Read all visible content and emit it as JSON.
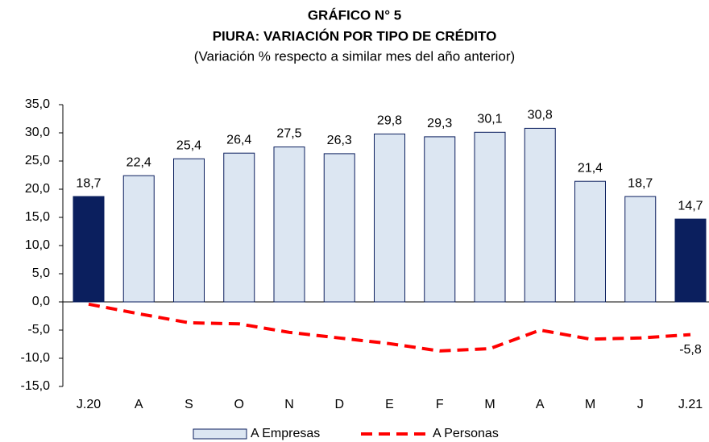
{
  "chart_data": {
    "type": "bar",
    "title": "GRÁFICO N° 5",
    "subtitle": "PIURA: VARIACIÓN POR TIPO DE CRÉDITO",
    "note": "(Variación % respecto a similar mes del año anterior)",
    "categories": [
      "J.20",
      "A",
      "S",
      "O",
      "N",
      "D",
      "E",
      "F",
      "M",
      "A",
      "M",
      "J",
      "J.21"
    ],
    "series": [
      {
        "name": "A Empresas",
        "type": "bar",
        "color": "#dce6f2",
        "colors": [
          "#0b1f5e",
          "#dce6f2",
          "#dce6f2",
          "#dce6f2",
          "#dce6f2",
          "#dce6f2",
          "#dce6f2",
          "#dce6f2",
          "#dce6f2",
          "#dce6f2",
          "#dce6f2",
          "#dce6f2",
          "#0b1f5e"
        ],
        "values": [
          18.7,
          22.4,
          25.4,
          26.4,
          27.5,
          26.3,
          29.8,
          29.3,
          30.1,
          30.8,
          21.4,
          18.7,
          14.7
        ],
        "value_labels": [
          "18,7",
          "22,4",
          "25,4",
          "26,4",
          "27,5",
          "26,3",
          "29,8",
          "29,3",
          "30,1",
          "30,8",
          "21,4",
          "18,7",
          "14,7"
        ]
      },
      {
        "name": "A Personas",
        "type": "line",
        "color": "#ff0000",
        "values": [
          -0.4,
          -2.1,
          -3.7,
          -3.9,
          -5.4,
          -6.4,
          -7.4,
          -8.7,
          -8.3,
          -5.0,
          -6.6,
          -6.4,
          -5.8
        ],
        "value_labels": [
          null,
          null,
          null,
          null,
          null,
          null,
          null,
          null,
          null,
          null,
          null,
          null,
          "-5,8"
        ]
      }
    ],
    "ylim": [
      -15,
      35
    ],
    "yticks": [
      {
        "value": -15,
        "label": "-15,0"
      },
      {
        "value": -10,
        "label": "-10,0"
      },
      {
        "value": -5,
        "label": "-5,0"
      },
      {
        "value": 0,
        "label": "0,0"
      },
      {
        "value": 5,
        "label": "5,0"
      },
      {
        "value": 10,
        "label": "10,0"
      },
      {
        "value": 15,
        "label": "15,0"
      },
      {
        "value": 20,
        "label": "20,0"
      },
      {
        "value": 25,
        "label": "25,0"
      },
      {
        "value": 30,
        "label": "30,0"
      },
      {
        "value": 35,
        "label": "35,0"
      }
    ],
    "grid": false
  }
}
